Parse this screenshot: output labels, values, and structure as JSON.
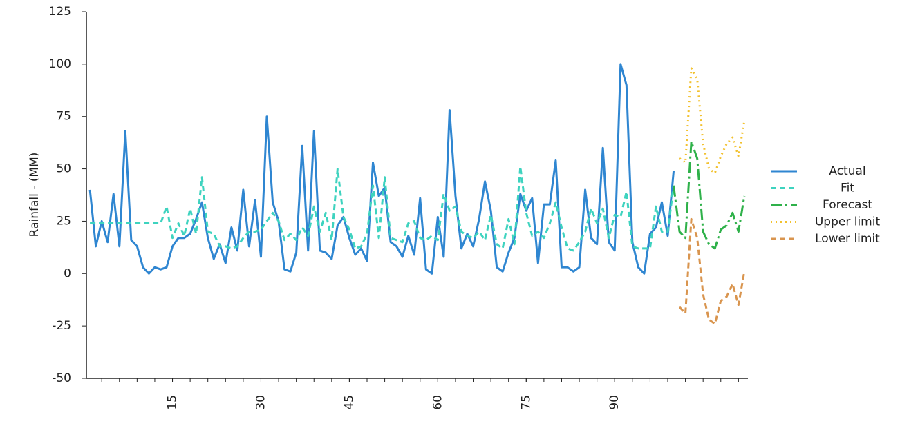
{
  "chart_data": {
    "type": "line",
    "ylabel": "Rainfall - (MM)",
    "xlim": [
      0.4,
      112.6
    ],
    "xticks": [
      15,
      30,
      45,
      60,
      75,
      90
    ],
    "xminor_step": 3,
    "ylim": [
      -50,
      125
    ],
    "yticks": [
      -50,
      -25,
      0,
      25,
      50,
      75,
      100,
      125
    ],
    "legend": "right",
    "grid": false,
    "series": [
      {
        "name": "Actual",
        "color": "#2f86d1",
        "dash": "solid",
        "x": [
          1,
          2,
          3,
          4,
          5,
          6,
          7,
          8,
          9,
          10,
          11,
          12,
          13,
          14,
          15,
          16,
          17,
          18,
          19,
          20,
          21,
          22,
          23,
          24,
          25,
          26,
          27,
          28,
          29,
          30,
          31,
          32,
          33,
          34,
          35,
          36,
          37,
          38,
          39,
          40,
          41,
          42,
          43,
          44,
          45,
          46,
          47,
          48,
          49,
          50,
          51,
          52,
          53,
          54,
          55,
          56,
          57,
          58,
          59,
          60,
          61,
          62,
          63,
          64,
          65,
          66,
          67,
          68,
          69,
          70,
          71,
          72,
          73,
          74,
          75,
          76,
          77,
          78,
          79,
          80,
          81,
          82,
          83,
          84,
          85,
          86,
          87,
          88,
          89,
          90,
          91,
          92,
          93,
          94,
          95,
          96,
          97,
          98,
          99,
          100
        ],
        "values": [
          40,
          13,
          25,
          15,
          38,
          13,
          68,
          16,
          13,
          3,
          0,
          3,
          2,
          3,
          13,
          17,
          17,
          19,
          26,
          34,
          17,
          7,
          14,
          5,
          22,
          11,
          40,
          13,
          35,
          8,
          75,
          34,
          25,
          2,
          1,
          10,
          61,
          11,
          68,
          11,
          10,
          7,
          23,
          27,
          17,
          9,
          12,
          6,
          53,
          37,
          41,
          15,
          13,
          8,
          18,
          9,
          36,
          2,
          0,
          27,
          8,
          78,
          37,
          12,
          19,
          13,
          26,
          44,
          30,
          3,
          1,
          10,
          17,
          38,
          30,
          36,
          5,
          33,
          33,
          54,
          3,
          3,
          1,
          3,
          40,
          17,
          14,
          60,
          15,
          11,
          100,
          90,
          15,
          3,
          0,
          19,
          22,
          34,
          18,
          49
        ]
      },
      {
        "name": "Fit",
        "color": "#3ed3bf",
        "dash": "dashed",
        "x": [
          1,
          2,
          3,
          4,
          5,
          6,
          7,
          8,
          9,
          10,
          11,
          12,
          13,
          14,
          15,
          16,
          17,
          18,
          19,
          20,
          21,
          22,
          23,
          24,
          25,
          26,
          27,
          28,
          29,
          30,
          31,
          32,
          33,
          34,
          35,
          36,
          37,
          38,
          39,
          40,
          41,
          42,
          43,
          44,
          45,
          46,
          47,
          48,
          49,
          50,
          51,
          52,
          53,
          54,
          55,
          56,
          57,
          58,
          59,
          60,
          61,
          62,
          63,
          64,
          65,
          66,
          67,
          68,
          69,
          70,
          71,
          72,
          73,
          74,
          75,
          76,
          77,
          78,
          79,
          80,
          81,
          82,
          83,
          84,
          85,
          86,
          87,
          88,
          89,
          90,
          91,
          92,
          93,
          94,
          95,
          96,
          97,
          98,
          99,
          100
        ],
        "values": [
          24,
          24,
          24,
          24,
          24,
          24,
          24,
          24,
          24,
          24,
          24,
          24,
          24,
          32,
          17,
          24,
          18,
          31,
          19,
          46,
          20,
          19,
          13,
          13,
          12,
          13,
          17,
          20,
          20,
          21,
          25,
          29,
          25,
          16,
          19,
          16,
          22,
          18,
          32,
          20,
          29,
          16,
          50,
          27,
          21,
          12,
          13,
          19,
          42,
          17,
          46,
          17,
          16,
          15,
          24,
          25,
          17,
          16,
          18,
          16,
          38,
          30,
          32,
          20,
          18,
          17,
          20,
          16,
          28,
          14,
          12,
          26,
          14,
          51,
          29,
          18,
          20,
          17,
          24,
          34,
          22,
          12,
          11,
          15,
          20,
          31,
          24,
          31,
          17,
          28,
          27,
          39,
          13,
          12,
          12,
          12,
          32,
          20,
          20,
          42
        ]
      },
      {
        "name": "Forecast",
        "color": "#2fb14a",
        "dash": "dashdot",
        "x": [
          100,
          101,
          102,
          103,
          104,
          105,
          106,
          107,
          108,
          109,
          110,
          111,
          112
        ],
        "values": [
          42,
          20,
          17,
          63,
          55,
          20,
          14,
          12,
          21,
          23,
          29,
          20,
          37
        ]
      },
      {
        "name": "Upper limit",
        "color": "#f2c12e",
        "dash": "dotted",
        "x": [
          101,
          102,
          103,
          104,
          105,
          106,
          107,
          108,
          109,
          110,
          111,
          112
        ],
        "values": [
          55,
          53,
          98,
          93,
          62,
          50,
          48,
          56,
          62,
          65,
          56,
          73
        ]
      },
      {
        "name": "Lower limit",
        "color": "#d9954f",
        "dash": "dashed",
        "x": [
          101,
          102,
          103,
          104,
          105,
          106,
          107,
          108,
          109,
          110,
          111,
          112
        ],
        "values": [
          -16,
          -19,
          26,
          17,
          -10,
          -22,
          -24,
          -13,
          -11,
          -5,
          -15,
          1
        ]
      }
    ]
  }
}
